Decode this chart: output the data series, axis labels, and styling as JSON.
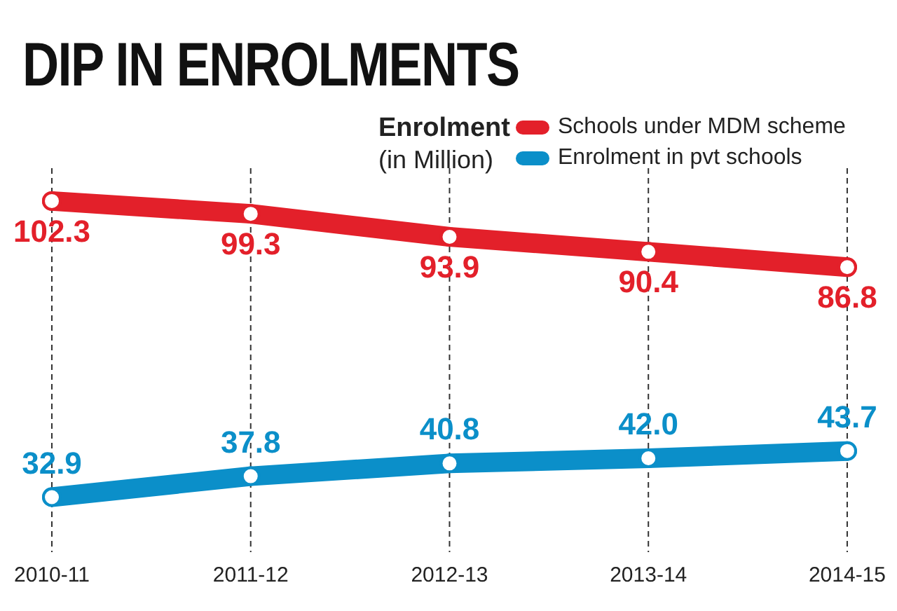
{
  "chart_data": {
    "type": "line",
    "title": "DIP IN ENROLMENTS",
    "legend_title": "Enrolment",
    "ylabel": "(in Million)",
    "categories": [
      "2010-11",
      "2011-12",
      "2012-13",
      "2013-14",
      "2014-15"
    ],
    "series": [
      {
        "name": "Schools under MDM scheme",
        "color": "#e3202a",
        "values": [
          102.3,
          99.3,
          93.9,
          90.4,
          86.8
        ],
        "value_labels": [
          "102.3",
          "99.3",
          "93.9",
          "90.4",
          "86.8"
        ]
      },
      {
        "name": "Enrolment in pvt schools",
        "color": "#0b8fc9",
        "values": [
          32.9,
          37.8,
          40.8,
          42.0,
          43.7
        ],
        "value_labels": [
          "32.9",
          "37.8",
          "40.8",
          "42.0",
          "43.7"
        ]
      }
    ],
    "tick_labels": "x",
    "grid": "x",
    "line_style": "solid",
    "marker": "circle",
    "legend": "top right"
  }
}
